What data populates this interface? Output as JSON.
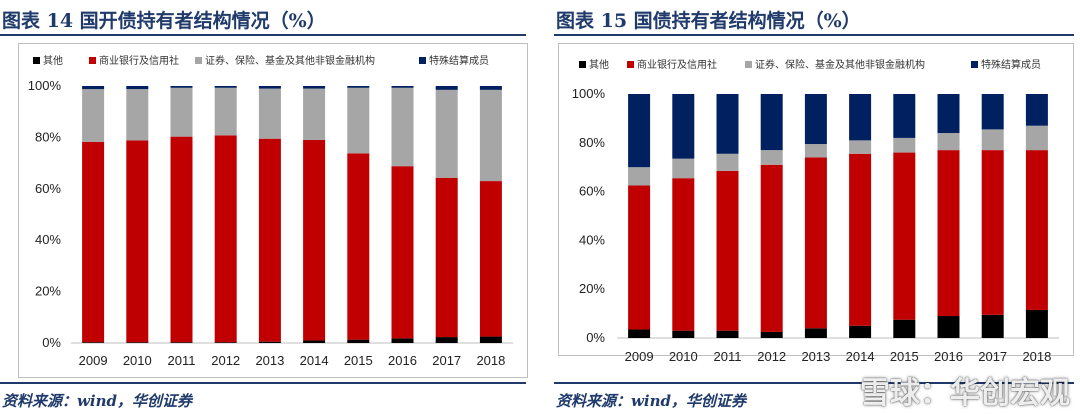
{
  "colors": {
    "other": "#000000",
    "bank": "#c00000",
    "securities": "#a6a6a6",
    "settlement": "#002060",
    "accent": "#1f3a6b"
  },
  "charts": [
    {
      "figure_title": "图表 14  国开债持有者结构情况（%）",
      "source": "资料来源：wind，华创证券"
    },
    {
      "figure_title": "图表 15  国债持有者结构情况（%）",
      "source": "资料来源：wind，华创证券"
    }
  ],
  "watermark": "雪球：华创宏观",
  "chart_data": [
    {
      "type": "bar",
      "stacked": true,
      "title": "图表 14  国开债持有者结构情况（%）",
      "categories": [
        "2009",
        "2010",
        "2011",
        "2012",
        "2013",
        "2014",
        "2015",
        "2016",
        "2017",
        "2018"
      ],
      "yticks": [
        "0%",
        "20%",
        "40%",
        "60%",
        "80%",
        "100%"
      ],
      "ylim": [
        0,
        100
      ],
      "legend": "top",
      "series": [
        {
          "name": "其他",
          "color": "#000000",
          "values": [
            0.3,
            0.3,
            0.3,
            0.3,
            0.5,
            1,
            1.3,
            1.8,
            2.3,
            2.5
          ]
        },
        {
          "name": "商业银行及信用社",
          "color": "#c00000",
          "values": [
            78,
            78.5,
            80,
            80.5,
            79,
            78,
            72.5,
            67,
            62,
            60.5
          ]
        },
        {
          "name": "证券、保险、基金及其他非银金融机构",
          "color": "#a6a6a6",
          "values": [
            20.5,
            20,
            19,
            18.5,
            19.5,
            20,
            25.5,
            30.5,
            34.2,
            35.5
          ]
        },
        {
          "name": "特殊结算成员",
          "color": "#002060",
          "values": [
            1.2,
            1.2,
            0.7,
            0.7,
            1,
            1,
            0.7,
            0.7,
            1.5,
            1.5
          ]
        }
      ]
    },
    {
      "type": "bar",
      "stacked": true,
      "title": "图表 15  国债持有者结构情况（%）",
      "categories": [
        "2009",
        "2010",
        "2011",
        "2012",
        "2013",
        "2014",
        "2015",
        "2016",
        "2017",
        "2018"
      ],
      "yticks": [
        "0%",
        "20%",
        "40%",
        "60%",
        "80%",
        "100%"
      ],
      "ylim": [
        0,
        100
      ],
      "legend": "top",
      "series": [
        {
          "name": "其他",
          "color": "#000000",
          "values": [
            3.5,
            3,
            3,
            2.5,
            4,
            5,
            7.5,
            9,
            9.5,
            11.5
          ]
        },
        {
          "name": "商业银行及信用社",
          "color": "#c00000",
          "values": [
            59,
            62.5,
            65.5,
            68.5,
            70,
            70.5,
            68.5,
            68,
            67.5,
            65.5
          ]
        },
        {
          "name": "证券、保险、基金及其他非银金融机构",
          "color": "#a6a6a6",
          "values": [
            7.5,
            8,
            7,
            6,
            5.5,
            5.5,
            6,
            7,
            8.5,
            10
          ]
        },
        {
          "name": "特殊结算成员",
          "color": "#002060",
          "values": [
            30,
            26.5,
            24.5,
            23,
            20.5,
            19,
            18,
            16,
            14.5,
            13
          ]
        }
      ]
    }
  ]
}
